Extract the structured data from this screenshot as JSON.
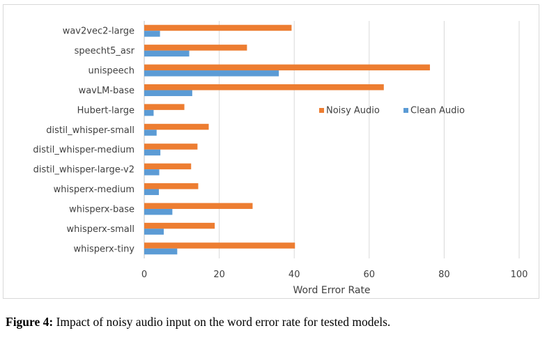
{
  "caption": {
    "label": "Figure 4:",
    "text": " Impact of noisy audio input on the word error rate for tested models."
  },
  "chart_data": {
    "type": "bar",
    "orientation": "horizontal",
    "categories": [
      "wav2vec2-large",
      "speecht5_asr",
      "unispeech",
      "wavLM-base",
      "Hubert-large",
      "distil_whisper-small",
      "distil_whisper-medium",
      "distil_whisper-large-v2",
      "whisperx-medium",
      "whisperx-base",
      "whisperx-small",
      "whisperx-tiny"
    ],
    "series": [
      {
        "name": "Noisy Audio",
        "color": "#ed7d31",
        "values": [
          39.3,
          27.4,
          76.2,
          63.9,
          10.7,
          17.2,
          14.2,
          12.5,
          14.4,
          28.9,
          18.8,
          40.2
        ]
      },
      {
        "name": "Clean Audio",
        "color": "#5b9bd5",
        "values": [
          4.2,
          12.0,
          35.9,
          12.8,
          2.5,
          3.3,
          4.3,
          4.0,
          3.9,
          7.5,
          5.2,
          8.8
        ]
      }
    ],
    "xlabel": "Word Error Rate",
    "ylabel": "",
    "xlim": [
      0,
      100
    ],
    "xticks": [
      0,
      20,
      40,
      60,
      80,
      100
    ],
    "grid": "vertical",
    "legend": "right"
  }
}
